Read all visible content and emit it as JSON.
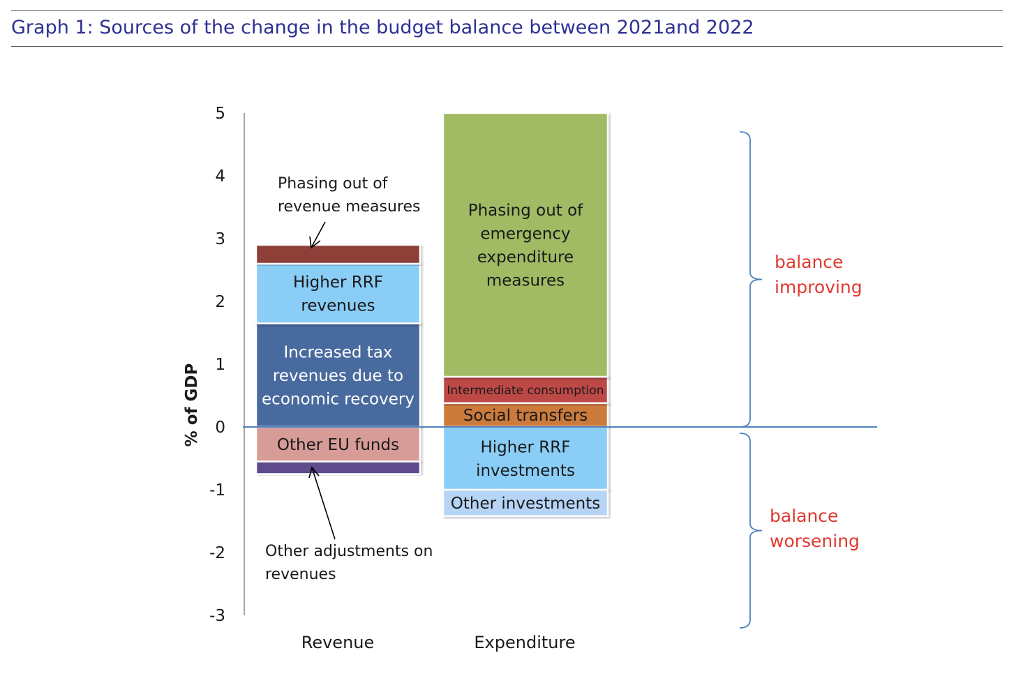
{
  "header": {
    "title": "Graph 1: Sources of the change in the budget balance between 2021and 2022"
  },
  "chart_data": {
    "type": "bar",
    "stacked": true,
    "ylabel": "% of GDP",
    "ylim": [
      -3,
      5
    ],
    "yticks": [
      5,
      4,
      3,
      2,
      1,
      0,
      -1,
      -2,
      -3
    ],
    "categories": [
      "Revenue",
      "Expenditure"
    ],
    "series": [
      {
        "name": "Increased tax revenues due to economic recovery",
        "category": "Revenue",
        "from": 0,
        "to": 1.65,
        "color": "#4a6a9e",
        "text_color": "#ffffff",
        "label_lines": [
          "Increased tax",
          "revenues due to",
          "economic recovery"
        ]
      },
      {
        "name": "Higher RRF revenues",
        "category": "Revenue",
        "from": 1.65,
        "to": 2.6,
        "color": "#8acdf6",
        "text_color": "#1a1a1a",
        "label_lines": [
          "Higher RRF",
          "revenues"
        ]
      },
      {
        "name": "Phasing out of revenue measures",
        "category": "Revenue",
        "from": 2.6,
        "to": 2.9,
        "color": "#8e3f37",
        "text_color": "#1a1a1a",
        "label_lines": []
      },
      {
        "name": "Other EU funds",
        "category": "Revenue",
        "from": -0.55,
        "to": 0,
        "color": "#d79c98",
        "text_color": "#1a1a1a",
        "label_lines": [
          "Other EU funds"
        ]
      },
      {
        "name": "Other adjustments on revenues",
        "category": "Revenue",
        "from": -0.75,
        "to": -0.55,
        "color": "#5e4b8c",
        "text_color": "#1a1a1a",
        "label_lines": []
      },
      {
        "name": "Social transfers",
        "category": "Expenditure",
        "from": 0,
        "to": 0.38,
        "color": "#cd7a3e",
        "text_color": "#1a1a1a",
        "label_lines": [
          "Social transfers"
        ]
      },
      {
        "name": "Intermediate consumption",
        "category": "Expenditure",
        "from": 0.38,
        "to": 0.8,
        "color": "#bd4a47",
        "text_color": "#1a1a1a",
        "label_lines": [
          "Intermediate consumption"
        ],
        "small": true
      },
      {
        "name": "Phasing out of emergency expenditure measures",
        "category": "Expenditure",
        "from": 0.8,
        "to": 5.0,
        "color": "#a0bb64",
        "text_color": "#1a1a1a",
        "label_lines": [
          "Phasing out of",
          "emergency",
          "expenditure",
          "measures"
        ]
      },
      {
        "name": "Higher RRF investments",
        "category": "Expenditure",
        "from": -1.0,
        "to": 0,
        "color": "#8acdf6",
        "text_color": "#1a1a1a",
        "label_lines": [
          "Higher RRF",
          "investments"
        ]
      },
      {
        "name": "Other investments",
        "category": "Expenditure",
        "from": -1.42,
        "to": -1.0,
        "color": "#b6d5f6",
        "text_color": "#1a1a1a",
        "label_lines": [
          "Other investments"
        ]
      }
    ],
    "annotations": [
      {
        "name": "phasing-out-revenue-annotation",
        "lines": [
          "Phasing out of",
          "revenue measures"
        ]
      },
      {
        "name": "other-adjustments-annotation",
        "lines": [
          "Other adjustments on",
          "revenues"
        ]
      }
    ],
    "brackets": [
      {
        "name": "balance-improving",
        "lines": [
          "balance",
          "improving"
        ],
        "from": 0,
        "to": 4.7,
        "color": "#e03a2f"
      },
      {
        "name": "balance-worsening",
        "lines": [
          "balance",
          "worsening"
        ],
        "from": -3.2,
        "to": -0.1,
        "color": "#e03a2f"
      }
    ],
    "bracket_color": "#4f81bd",
    "zero_line_color": "#4f81bd"
  }
}
